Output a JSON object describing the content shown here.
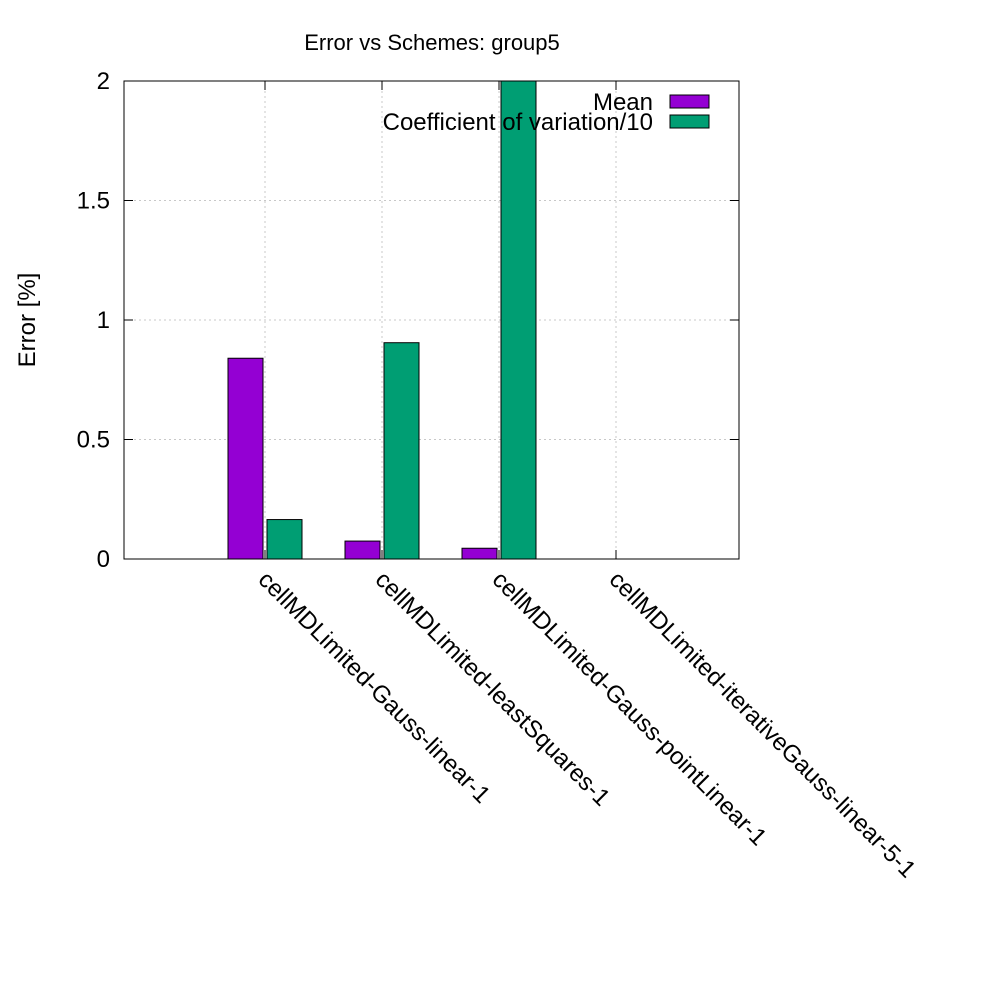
{
  "chart_data": {
    "type": "bar",
    "title": "Error vs Schemes: group5",
    "xlabel": "",
    "ylabel": "Error [%]",
    "ylim": [
      0,
      2
    ],
    "yticks": [
      0,
      0.5,
      1,
      1.5,
      2
    ],
    "ytick_labels": [
      "0",
      "0.5",
      "1",
      "1.5",
      "2"
    ],
    "grid": true,
    "legend_position": "top-right",
    "categories": [
      "cellMDLimited-Gauss-linear-1",
      "cellMDLimited-leastSquares-1",
      "cellMDLimited-Gauss-pointLinear-1",
      "cellMDLimited-iterativeGauss-linear-5-1"
    ],
    "series": [
      {
        "name": "Mean",
        "color": "#9400d3",
        "values": [
          0.84,
          0.075,
          0.045,
          null
        ]
      },
      {
        "name": "Coefficient of variation/10",
        "color": "#009e73",
        "values": [
          0.165,
          0.905,
          2.1,
          null
        ]
      }
    ]
  }
}
